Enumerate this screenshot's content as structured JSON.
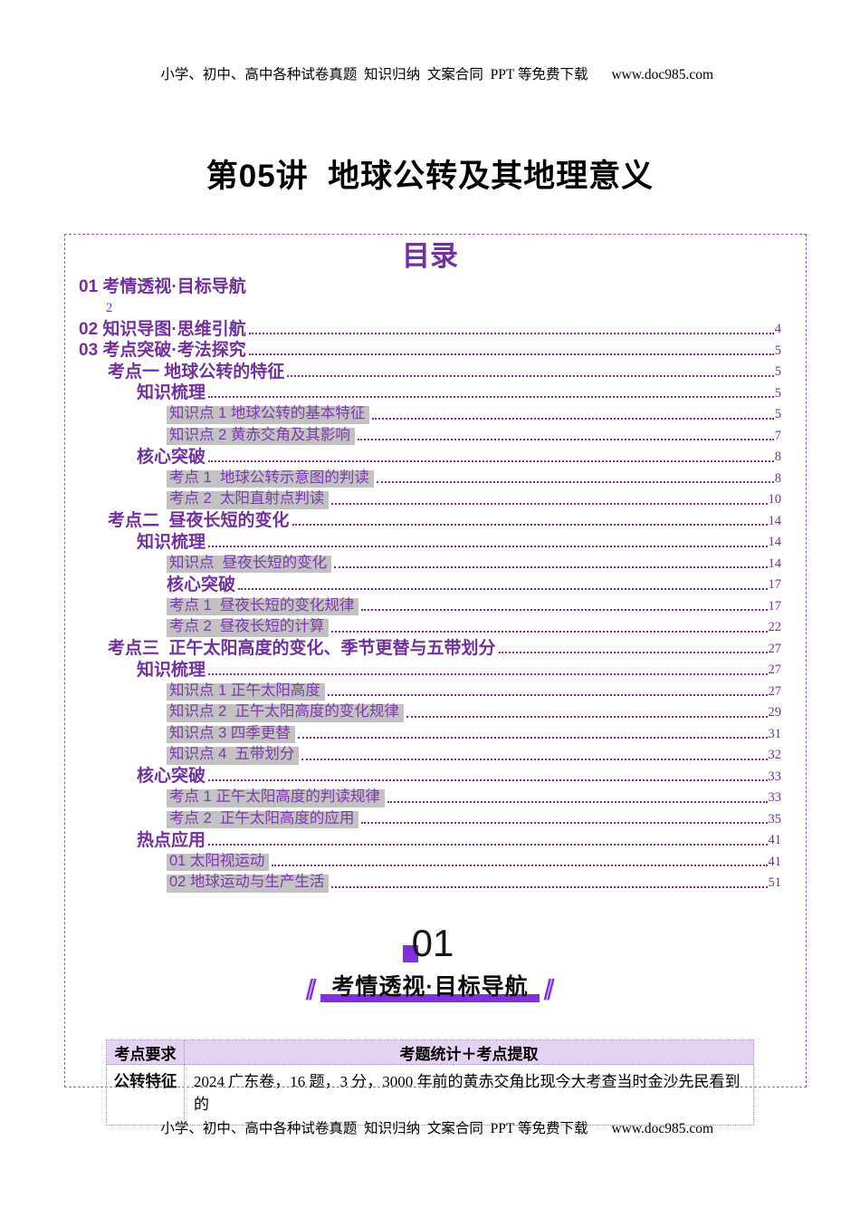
{
  "header": {
    "text": "小学、初中、高中各种试卷真题  知识归纳  文案合同  PPT 等免费下载",
    "site": "www.doc985.com"
  },
  "footer": {
    "text": "小学、初中、高中各种试卷真题  知识归纳  文案合同  PPT 等免费下载",
    "site": "www.doc985.com"
  },
  "doc": {
    "title": "第05讲  地球公转及其地理意义"
  },
  "toc": {
    "title": "目录",
    "entries": [
      {
        "label": "01 考情透视·目标导航",
        "page": "2",
        "level": 0,
        "style": "bold",
        "page_below": true
      },
      {
        "label": "02 知识导图·思维引航",
        "page": "4",
        "level": 0,
        "style": "bold"
      },
      {
        "label": "03 考点突破·考法探究",
        "page": "5",
        "level": 0,
        "style": "bold"
      },
      {
        "label": "考点一 地球公转的特征",
        "page": "5",
        "level": 1,
        "style": "bold"
      },
      {
        "label": "知识梳理",
        "page": "5",
        "level": 2,
        "style": "bold"
      },
      {
        "label": "知识点 1 地球公转的基本特征",
        "page": "5",
        "level": 3,
        "style": "highlight"
      },
      {
        "label": "知识点 2 黄赤交角及其影响",
        "page": "7",
        "level": 3,
        "style": "highlight"
      },
      {
        "label": "核心突破",
        "page": "8",
        "level": 2,
        "style": "bold"
      },
      {
        "label": "考点 1  地球公转示意图的判读",
        "page": "8",
        "level": 3,
        "style": "highlight"
      },
      {
        "label": "考点 2  太阳直射点判读",
        "page": "10",
        "level": 3,
        "style": "highlight"
      },
      {
        "label": "考点二  昼夜长短的变化",
        "page": "14",
        "level": 1,
        "style": "bold"
      },
      {
        "label": "知识梳理",
        "page": "14",
        "level": 2,
        "style": "bold"
      },
      {
        "label": "知识点  昼夜长短的变化",
        "page": "14",
        "level": 3,
        "style": "highlight"
      },
      {
        "label": "核心突破",
        "page": "17",
        "level": 3,
        "style": "bold"
      },
      {
        "label": "考点 1  昼夜长短的变化规律",
        "page": "17",
        "level": 3,
        "style": "highlight"
      },
      {
        "label": "考点 2  昼夜长短的计算",
        "page": "22",
        "level": 3,
        "style": "highlight"
      },
      {
        "label": "考点三  正午太阳高度的变化、季节更替与五带划分",
        "page": "27",
        "level": 1,
        "style": "bold"
      },
      {
        "label": "知识梳理",
        "page": "27",
        "level": 2,
        "style": "bold"
      },
      {
        "label": "知识点 1 正午太阳高度",
        "page": "27",
        "level": 3,
        "style": "highlight"
      },
      {
        "label": "知识点 2  正午太阳高度的变化规律",
        "page": "29",
        "level": 3,
        "style": "highlight"
      },
      {
        "label": "知识点 3 四季更替",
        "page": "31",
        "level": 3,
        "style": "highlight"
      },
      {
        "label": "知识点 4  五带划分",
        "page": "32",
        "level": 3,
        "style": "highlight"
      },
      {
        "label": "核心突破",
        "page": "33",
        "level": 2,
        "style": "bold"
      },
      {
        "label": "考点 1 正午太阳高度的判读规律",
        "page": "33",
        "level": 3,
        "style": "highlight"
      },
      {
        "label": "考点 2  正午太阳高度的应用",
        "page": "35",
        "level": 3,
        "style": "highlight"
      },
      {
        "label": "热点应用",
        "page": "41",
        "level": 2,
        "style": "bold"
      },
      {
        "label": "01 太阳视运动",
        "page": "41",
        "level": 3,
        "style": "highlight"
      },
      {
        "label": "02 地球运动与生产生活",
        "page": "51",
        "level": 3,
        "style": "highlight"
      }
    ]
  },
  "section": {
    "number": "01",
    "title": "考情透视·目标导航"
  },
  "table": {
    "headers": [
      "考点要求",
      "考题统计＋考点提取"
    ],
    "rows": [
      [
        "公转特征",
        "2024 广东卷，16 题，3 分，3000 年前的黄赤交角比现今大考查当时金沙先民看到的"
      ]
    ]
  },
  "colors": {
    "accent_purple": "#7030a0",
    "toc_item_purple": "#7c3cab",
    "highlight_gray": "#c2c2c2",
    "vivid_purple": "#8130e0",
    "table_header_bg": "#e3d3f1",
    "table_border": "#a98cc8",
    "page_border": "#8f63bd",
    "text_black": "#111111"
  }
}
